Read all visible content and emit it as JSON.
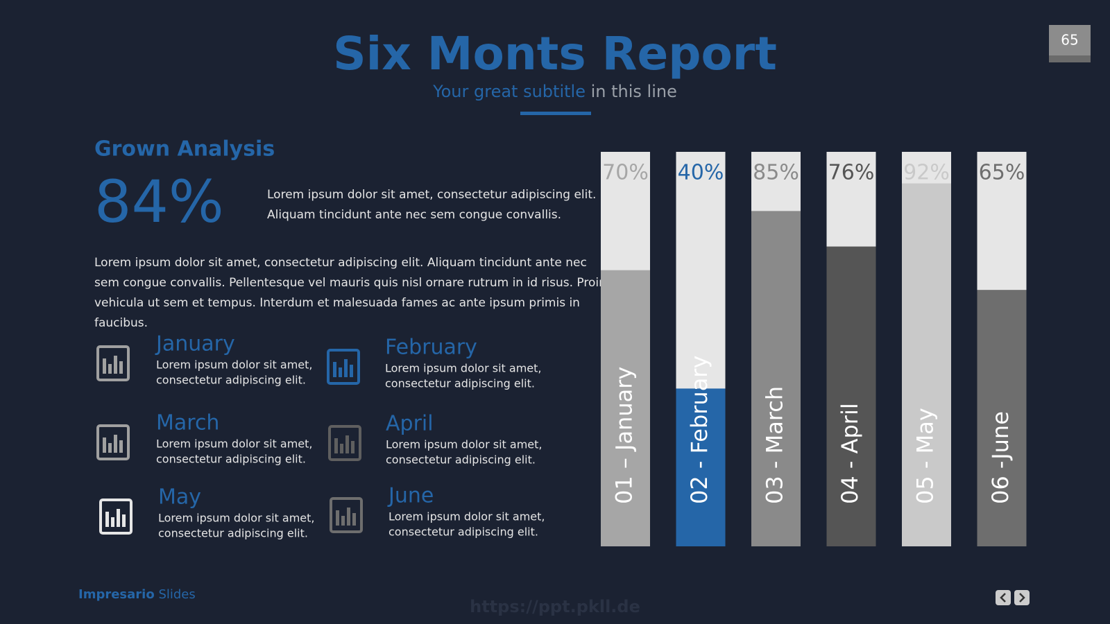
{
  "page_number": "65",
  "header": {
    "title": "Six Monts Report",
    "subtitle_highlight": "Your great subtitle",
    "subtitle_rest": "in this line"
  },
  "analysis": {
    "heading": "Grown Analysis",
    "stat": "84%",
    "stat_text": [
      "Lorem ipsum dolor sit amet, consectetur adipiscing elit.",
      "Aliquam tincidunt ante nec sem congue convallis."
    ],
    "paragraph": [
      "Lorem ipsum dolor sit amet, consectetur adipiscing elit. Aliquam tincidunt ante nec",
      "sem congue convallis. Pellentesque vel mauris quis nisl ornare rutrum in id risus. Proin",
      "vehicula ut sem et tempus. Interdum et malesuada fames ac ante ipsum primis in",
      "faucibus."
    ]
  },
  "months": [
    {
      "name": "January",
      "text": [
        "Lorem ipsum dolor sit amet,",
        "consectetur adipiscing elit."
      ]
    },
    {
      "name": "February",
      "text": [
        "Lorem ipsum dolor sit amet,",
        "consectetur adipiscing elit."
      ]
    },
    {
      "name": "March",
      "text": [
        "Lorem ipsum dolor sit amet,",
        "consectetur adipiscing elit."
      ]
    },
    {
      "name": "April",
      "text": [
        "Lorem ipsum dolor sit amet,",
        "consectetur adipiscing elit."
      ]
    },
    {
      "name": "May",
      "text": [
        "Lorem ipsum dolor sit amet,",
        "consectetur adipiscing elit."
      ]
    },
    {
      "name": "June",
      "text": [
        "Lorem ipsum dolor sit amet,",
        "consectetur adipiscing elit."
      ]
    }
  ],
  "chart_data": {
    "type": "bar",
    "categories": [
      "01 – January",
      "02 - February",
      "03 - March",
      "04 - April",
      "05 - May",
      "06 -June"
    ],
    "values": [
      70,
      40,
      85,
      76,
      92,
      65
    ],
    "value_labels": [
      "70%",
      "40%",
      "85%",
      "76%",
      "92%",
      "65%"
    ],
    "colors": [
      "#a6a6a6",
      "#2566a8",
      "#8a8a8a",
      "#555555",
      "#c9c9c9",
      "#6e6e6e"
    ],
    "ylim": [
      0,
      100
    ]
  },
  "footer": {
    "brand": "Impresario",
    "brand_rest": "Slides",
    "watermark": "https://ppt.pkll.de"
  }
}
